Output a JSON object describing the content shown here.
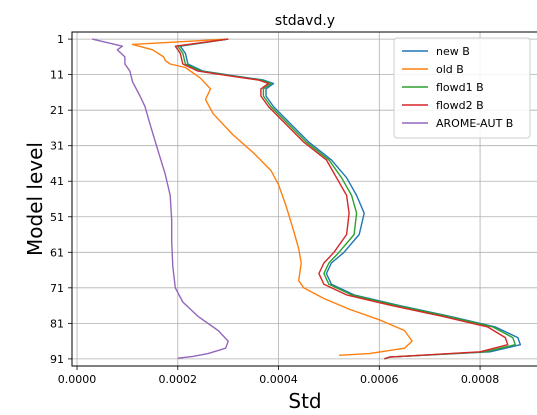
{
  "chart_data": {
    "type": "line",
    "title": "stdavd.y",
    "xlabel": "Std",
    "ylabel": "Model level",
    "xlim": [
      -1e-05,
      0.000915
    ],
    "ylim": [
      93,
      -1
    ],
    "y_inverted": true,
    "x_ticks": [
      0.0,
      0.0002,
      0.0004,
      0.0006,
      0.0008
    ],
    "x_tick_labels": [
      "0.0000",
      "0.0002",
      "0.0004",
      "0.0006",
      "0.0008"
    ],
    "y_ticks": [
      1,
      11,
      21,
      31,
      41,
      51,
      61,
      71,
      81,
      91
    ],
    "y_tick_labels": [
      "1",
      "11",
      "21",
      "31",
      "41",
      "51",
      "61",
      "71",
      "81",
      "91"
    ],
    "grid": true,
    "legend_position": "top-right",
    "series": [
      {
        "name": "new B",
        "color": "#1f77b4",
        "points": [
          [
            0.0003,
            1
          ],
          [
            0.000205,
            3
          ],
          [
            0.000215,
            5
          ],
          [
            0.00022,
            8
          ],
          [
            0.00025,
            10
          ],
          [
            0.00032,
            11.5
          ],
          [
            0.00037,
            12.5
          ],
          [
            0.00039,
            13.5
          ],
          [
            0.000375,
            15
          ],
          [
            0.000375,
            17
          ],
          [
            0.00039,
            20
          ],
          [
            0.000425,
            25
          ],
          [
            0.00046,
            30
          ],
          [
            0.000505,
            35
          ],
          [
            0.000535,
            40
          ],
          [
            0.000555,
            45
          ],
          [
            0.00057,
            50
          ],
          [
            0.00056,
            56
          ],
          [
            0.00053,
            61
          ],
          [
            0.000505,
            64
          ],
          [
            0.000495,
            67
          ],
          [
            0.000505,
            70
          ],
          [
            0.00055,
            73
          ],
          [
            0.00064,
            76
          ],
          [
            0.00074,
            79
          ],
          [
            0.00083,
            82
          ],
          [
            0.000875,
            85
          ],
          [
            0.00088,
            87
          ],
          [
            0.00082,
            89
          ],
          [
            0.00062,
            90.5
          ],
          [
            0.00061,
            91
          ]
        ]
      },
      {
        "name": "old B",
        "color": "#ff7f0e",
        "points": [
          [
            0.0003,
            1
          ],
          [
            0.00011,
            2.5
          ],
          [
            0.00015,
            4
          ],
          [
            0.000172,
            6
          ],
          [
            0.000175,
            7
          ],
          [
            0.000185,
            8
          ],
          [
            0.000215,
            9
          ],
          [
            0.000245,
            12
          ],
          [
            0.000265,
            15
          ],
          [
            0.000255,
            18
          ],
          [
            0.00027,
            22
          ],
          [
            0.00031,
            28
          ],
          [
            0.00035,
            33
          ],
          [
            0.000385,
            38
          ],
          [
            0.0004,
            42
          ],
          [
            0.000415,
            48
          ],
          [
            0.00043,
            55
          ],
          [
            0.00044,
            60
          ],
          [
            0.000445,
            64
          ],
          [
            0.00044,
            69
          ],
          [
            0.00045,
            71
          ],
          [
            0.00049,
            74
          ],
          [
            0.00054,
            77
          ],
          [
            0.0006,
            80
          ],
          [
            0.00065,
            83
          ],
          [
            0.000665,
            86
          ],
          [
            0.00065,
            88
          ],
          [
            0.00058,
            89.5
          ],
          [
            0.00052,
            90
          ]
        ]
      },
      {
        "name": "flowd1 B",
        "color": "#2ca02c",
        "points": [
          [
            0.0003,
            1
          ],
          [
            0.0002,
            3
          ],
          [
            0.00021,
            5
          ],
          [
            0.000215,
            8
          ],
          [
            0.000245,
            10
          ],
          [
            0.000315,
            11.5
          ],
          [
            0.000365,
            12.5
          ],
          [
            0.000385,
            13.5
          ],
          [
            0.00037,
            15
          ],
          [
            0.00037,
            17
          ],
          [
            0.000385,
            20
          ],
          [
            0.00042,
            25
          ],
          [
            0.000455,
            30
          ],
          [
            0.0005,
            35
          ],
          [
            0.000525,
            40
          ],
          [
            0.000545,
            45
          ],
          [
            0.000555,
            50
          ],
          [
            0.00055,
            56
          ],
          [
            0.00052,
            61
          ],
          [
            0.0005,
            64
          ],
          [
            0.00049,
            67
          ],
          [
            0.0005,
            70
          ],
          [
            0.000545,
            73
          ],
          [
            0.000635,
            76
          ],
          [
            0.000735,
            79
          ],
          [
            0.000825,
            82
          ],
          [
            0.000865,
            85
          ],
          [
            0.00087,
            87
          ],
          [
            0.00081,
            89
          ],
          [
            0.00062,
            90.5
          ],
          [
            0.00061,
            91
          ]
        ]
      },
      {
        "name": "flowd2 B",
        "color": "#d62728",
        "points": [
          [
            0.0003,
            1
          ],
          [
            0.000195,
            3
          ],
          [
            0.000205,
            5
          ],
          [
            0.00021,
            8
          ],
          [
            0.00024,
            10
          ],
          [
            0.00031,
            11.5
          ],
          [
            0.00036,
            12.5
          ],
          [
            0.00038,
            13.5
          ],
          [
            0.000365,
            15
          ],
          [
            0.000365,
            17
          ],
          [
            0.00038,
            20
          ],
          [
            0.000415,
            25
          ],
          [
            0.00045,
            30
          ],
          [
            0.000495,
            35
          ],
          [
            0.000515,
            40
          ],
          [
            0.000535,
            45
          ],
          [
            0.00054,
            50
          ],
          [
            0.000535,
            56
          ],
          [
            0.00051,
            61
          ],
          [
            0.00049,
            64
          ],
          [
            0.00048,
            67
          ],
          [
            0.00049,
            70
          ],
          [
            0.000535,
            73
          ],
          [
            0.000625,
            76
          ],
          [
            0.000725,
            79
          ],
          [
            0.000815,
            82
          ],
          [
            0.00085,
            85
          ],
          [
            0.000855,
            87
          ],
          [
            0.0008,
            89
          ],
          [
            0.00062,
            90.5
          ],
          [
            0.00061,
            91
          ]
        ]
      },
      {
        "name": "AROME-AUT B",
        "color": "#9467bd",
        "points": [
          [
            3e-05,
            1
          ],
          [
            9e-05,
            3
          ],
          [
            8e-05,
            4
          ],
          [
            9.5e-05,
            6
          ],
          [
            9.5e-05,
            8
          ],
          [
            0.000105,
            10
          ],
          [
            0.00011,
            13
          ],
          [
            0.000125,
            17
          ],
          [
            0.000135,
            20
          ],
          [
            0.000145,
            25
          ],
          [
            0.00016,
            32
          ],
          [
            0.000175,
            39
          ],
          [
            0.000185,
            45
          ],
          [
            0.000188,
            52
          ],
          [
            0.000188,
            58
          ],
          [
            0.00019,
            65
          ],
          [
            0.000195,
            71
          ],
          [
            0.00021,
            75
          ],
          [
            0.00024,
            79
          ],
          [
            0.00028,
            83
          ],
          [
            0.0003,
            86
          ],
          [
            0.000295,
            88
          ],
          [
            0.00026,
            89.5
          ],
          [
            0.00023,
            90.3
          ],
          [
            0.0002,
            90.8
          ]
        ]
      }
    ]
  }
}
